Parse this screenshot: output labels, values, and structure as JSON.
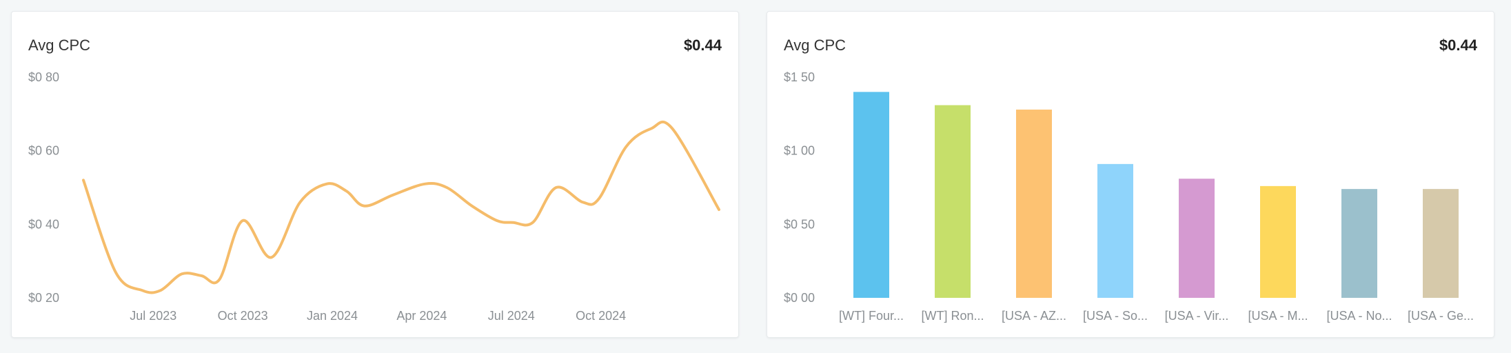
{
  "cards": [
    {
      "title": "Avg CPC",
      "value": "$0.44"
    },
    {
      "title": "Avg CPC",
      "value": "$0.44"
    }
  ],
  "chart_data": [
    {
      "type": "line",
      "title": "Avg CPC",
      "color": "#f5bc6a",
      "ylim": [
        0.2,
        0.8
      ],
      "y_ticks": [
        "$0 80",
        "$0 60",
        "$0 40",
        "$0 20"
      ],
      "y_tick_values": [
        0.8,
        0.6,
        0.4,
        0.2
      ],
      "x_ticks": [
        "Jul 2023",
        "Oct 2023",
        "Jan 2024",
        "Apr 2024",
        "Jul 2024",
        "Oct 2024"
      ],
      "x_tick_values": [
        2023.5,
        2023.75,
        2024.0,
        2024.25,
        2024.5,
        2024.75
      ],
      "xlim": [
        2023.305,
        2025.08
      ],
      "grid": false,
      "points": [
        [
          2023.305,
          0.52
        ],
        [
          2023.395,
          0.27
        ],
        [
          2023.47,
          0.22
        ],
        [
          2023.52,
          0.22
        ],
        [
          2023.58,
          0.265
        ],
        [
          2023.635,
          0.26
        ],
        [
          2023.685,
          0.25
        ],
        [
          2023.75,
          0.41
        ],
        [
          2023.83,
          0.31
        ],
        [
          2023.91,
          0.46
        ],
        [
          2023.985,
          0.51
        ],
        [
          2024.04,
          0.49
        ],
        [
          2024.09,
          0.45
        ],
        [
          2024.17,
          0.48
        ],
        [
          2024.26,
          0.51
        ],
        [
          2024.32,
          0.5
        ],
        [
          2024.39,
          0.45
        ],
        [
          2024.46,
          0.41
        ],
        [
          2024.505,
          0.405
        ],
        [
          2024.56,
          0.405
        ],
        [
          2024.625,
          0.5
        ],
        [
          2024.7,
          0.46
        ],
        [
          2024.745,
          0.47
        ],
        [
          2024.82,
          0.61
        ],
        [
          2024.89,
          0.66
        ],
        [
          2024.95,
          0.66
        ],
        [
          2025.08,
          0.44
        ]
      ]
    },
    {
      "type": "bar",
      "title": "Avg CPC",
      "ylim": [
        0,
        1.5
      ],
      "y_ticks": [
        "$1 50",
        "$1 00",
        "$0 50",
        "$0 00"
      ],
      "y_tick_values": [
        1.5,
        1.0,
        0.5,
        0.0
      ],
      "grid": false,
      "categories": [
        "[WT] Four...",
        "[WT] Ron...",
        "[USA - AZ...",
        "[USA - So...",
        "[USA - Vir...",
        "[USA - M...",
        "[USA - No...",
        "[USA - Ge..."
      ],
      "values": [
        1.4,
        1.31,
        1.28,
        0.91,
        0.81,
        0.76,
        0.74,
        0.74
      ],
      "colors": [
        "#5cc2ee",
        "#c6df6a",
        "#fdc272",
        "#8fd4fb",
        "#d59ad1",
        "#fdd85c",
        "#9bc0cc",
        "#d6c9aa"
      ]
    }
  ]
}
